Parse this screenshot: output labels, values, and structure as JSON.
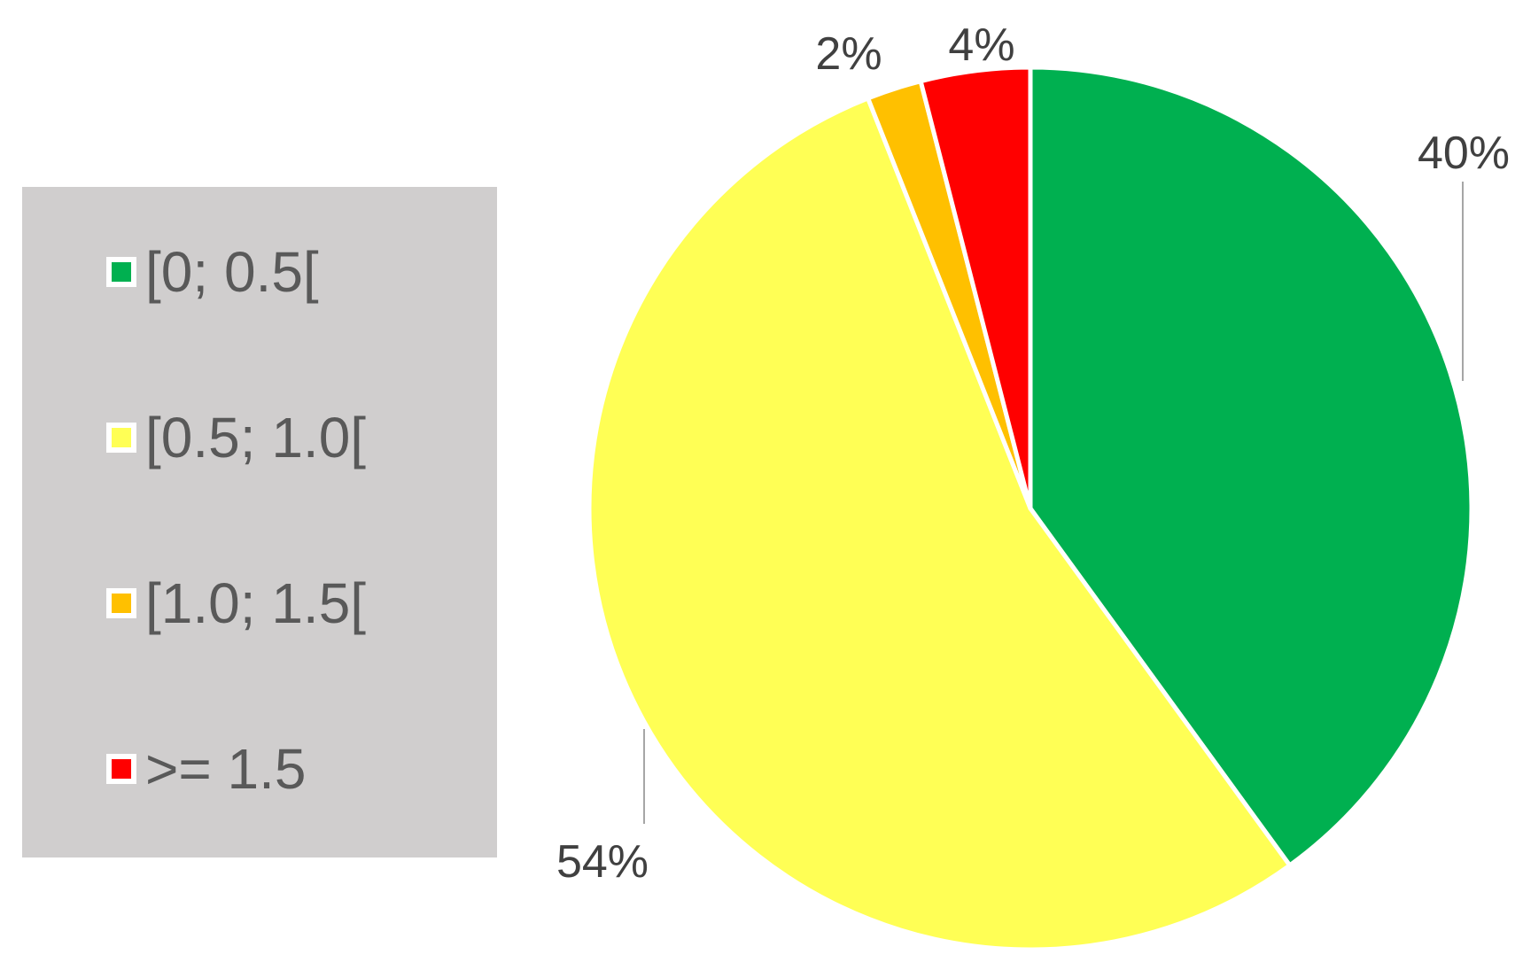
{
  "chart_data": {
    "type": "pie",
    "title": "",
    "slices": [
      {
        "label": "[0; 0.5[",
        "value": 40,
        "value_label": "40%",
        "color": "#00b050"
      },
      {
        "label": "[0.5; 1.0[",
        "value": 54,
        "value_label": "54%",
        "color": "#ffff55"
      },
      {
        "label": "[1.0; 1.5[",
        "value": 2,
        "value_label": "2%",
        "color": "#ffc000"
      },
      {
        "label": ">= 1.5",
        "value": 4,
        "value_label": "4%",
        "color": "#ff0000"
      }
    ],
    "legend_position": "left",
    "start_angle_deg": 0,
    "direction": "clockwise"
  }
}
